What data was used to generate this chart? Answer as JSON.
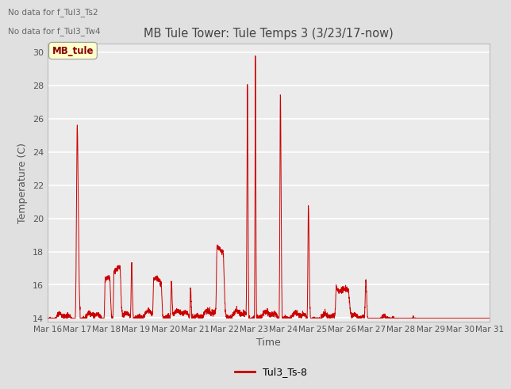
{
  "title": "MB Tule Tower: Tule Temps 3 (3/23/17-now)",
  "xlabel": "Time",
  "ylabel": "Temperature (C)",
  "ylim": [
    13.8,
    30.5
  ],
  "yticks": [
    14,
    16,
    18,
    20,
    22,
    24,
    26,
    28,
    30
  ],
  "line_color": "#cc0000",
  "legend_label": "Tul3_Ts-8",
  "legend_box_label": "MB_tule",
  "no_data_labels": [
    "No data for f_Tul3_Ts2",
    "No data for f_Tul3_Tw4"
  ],
  "background_color": "#e0e0e0",
  "plot_bg_color": "#ebebeb",
  "grid_color": "white",
  "x_tick_labels": [
    "Mar 16",
    "Mar 17",
    "Mar 18",
    "Mar 19",
    "Mar 20",
    "Mar 21",
    "Mar 22",
    "Mar 23",
    "Mar 24",
    "Mar 25",
    "Mar 26",
    "Mar 27",
    "Mar 28",
    "Mar 29",
    "Mar 30",
    "Mar 31"
  ],
  "num_days": 15
}
